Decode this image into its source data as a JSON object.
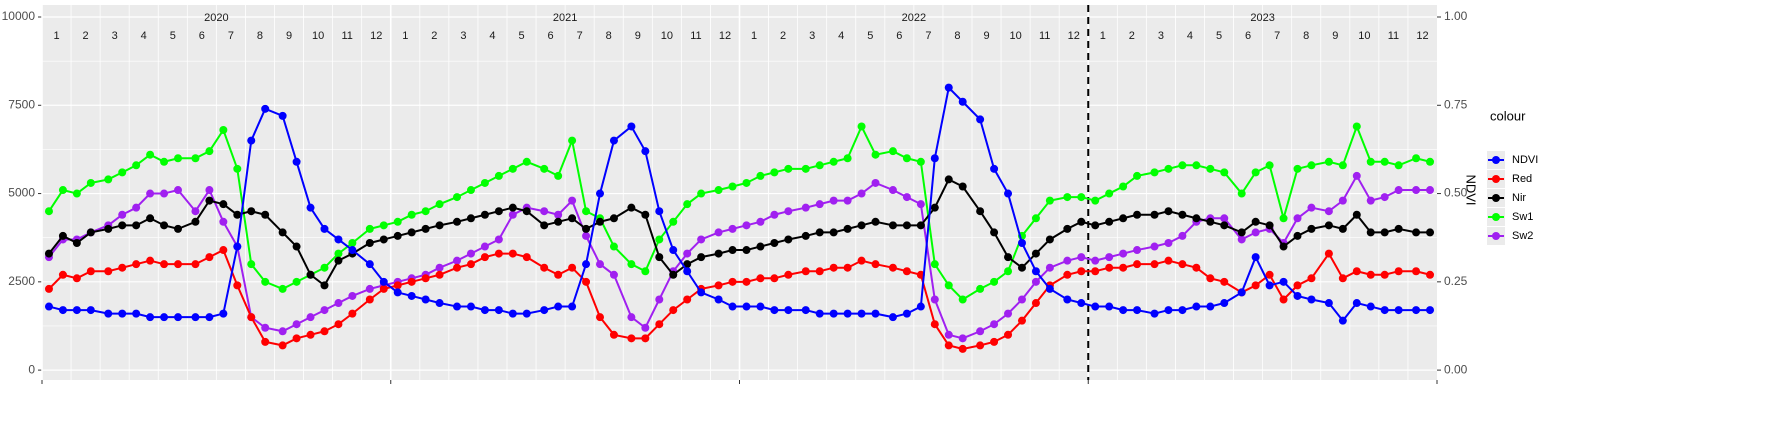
{
  "chart_data": {
    "type": "line",
    "x": [
      2020.02,
      2020.06,
      2020.1,
      2020.14,
      2020.19,
      2020.23,
      2020.27,
      2020.31,
      2020.35,
      2020.39,
      2020.44,
      2020.48,
      2020.52,
      2020.56,
      2020.6,
      2020.64,
      2020.69,
      2020.73,
      2020.77,
      2020.81,
      2020.85,
      2020.89,
      2020.94,
      2020.98,
      2021.02,
      2021.06,
      2021.1,
      2021.14,
      2021.19,
      2021.23,
      2021.27,
      2021.31,
      2021.35,
      2021.39,
      2021.44,
      2021.48,
      2021.52,
      2021.56,
      2021.6,
      2021.64,
      2021.69,
      2021.73,
      2021.77,
      2021.81,
      2021.85,
      2021.89,
      2021.94,
      2021.98,
      2022.02,
      2022.06,
      2022.1,
      2022.14,
      2022.19,
      2022.23,
      2022.27,
      2022.31,
      2022.35,
      2022.39,
      2022.44,
      2022.48,
      2022.52,
      2022.56,
      2022.6,
      2022.64,
      2022.69,
      2022.73,
      2022.77,
      2022.81,
      2022.85,
      2022.89,
      2022.94,
      2022.98,
      2023.02,
      2023.06,
      2023.1,
      2023.14,
      2023.19,
      2023.23,
      2023.27,
      2023.31,
      2023.35,
      2023.39,
      2023.44,
      2023.48,
      2023.52,
      2023.56,
      2023.6,
      2023.64,
      2023.69,
      2023.73,
      2023.77,
      2023.81,
      2023.85,
      2023.89,
      2023.94,
      2023.98
    ],
    "series": [
      {
        "name": "Sw1",
        "color": "#00ff00",
        "values": [
          4500,
          5100,
          5000,
          5300,
          5400,
          5600,
          5800,
          6100,
          5900,
          6000,
          6000,
          6200,
          6800,
          5700,
          3000,
          2500,
          2300,
          2500,
          2700,
          2900,
          3300,
          3600,
          4000,
          4100,
          4200,
          4400,
          4500,
          4700,
          4900,
          5100,
          5300,
          5500,
          5700,
          5900,
          5700,
          5500,
          6500,
          4500,
          4300,
          3500,
          3000,
          2800,
          3700,
          4200,
          4700,
          5000,
          5100,
          5200,
          5300,
          5500,
          5600,
          5700,
          5700,
          5800,
          5900,
          6000,
          6900,
          6100,
          6200,
          6000,
          5900,
          3000,
          2400,
          2000,
          2300,
          2500,
          2800,
          3800,
          4300,
          4800,
          4900,
          4900,
          4800,
          5000,
          5200,
          5500,
          5600,
          5700,
          5800,
          5800,
          5700,
          5600,
          5000,
          5600,
          5800,
          4300,
          5700,
          5800,
          5900,
          5800,
          6900,
          5900,
          5900,
          5800,
          6000,
          5900
        ]
      },
      {
        "name": "Sw2",
        "color": "#a020f0",
        "values": [
          3200,
          3700,
          3700,
          3900,
          4100,
          4400,
          4600,
          5000,
          5000,
          5100,
          4500,
          5100,
          4200,
          3500,
          1500,
          1200,
          1100,
          1300,
          1500,
          1700,
          1900,
          2100,
          2300,
          2400,
          2500,
          2600,
          2700,
          2900,
          3100,
          3300,
          3500,
          3700,
          4400,
          4600,
          4500,
          4400,
          4800,
          3800,
          3000,
          2700,
          1500,
          1200,
          2000,
          2800,
          3300,
          3700,
          3900,
          4000,
          4100,
          4200,
          4400,
          4500,
          4600,
          4700,
          4800,
          4800,
          5000,
          5300,
          5100,
          4900,
          4700,
          2000,
          1000,
          900,
          1100,
          1300,
          1600,
          2000,
          2500,
          2900,
          3100,
          3200,
          3100,
          3200,
          3300,
          3400,
          3500,
          3600,
          3800,
          4200,
          4300,
          4300,
          3700,
          3900,
          4000,
          3600,
          4300,
          4600,
          4500,
          4800,
          5500,
          4800,
          4900,
          5100,
          5100,
          5100
        ]
      },
      {
        "name": "Nir",
        "color": "#000000",
        "values": [
          3300,
          3800,
          3600,
          3900,
          4000,
          4100,
          4100,
          4300,
          4100,
          4000,
          4200,
          4800,
          4700,
          4400,
          4500,
          4400,
          3900,
          3500,
          2700,
          2400,
          3100,
          3300,
          3600,
          3700,
          3800,
          3900,
          4000,
          4100,
          4200,
          4300,
          4400,
          4500,
          4600,
          4500,
          4100,
          4200,
          4300,
          4000,
          4200,
          4300,
          4600,
          4400,
          3200,
          2700,
          3000,
          3200,
          3300,
          3400,
          3400,
          3500,
          3600,
          3700,
          3800,
          3900,
          3900,
          4000,
          4100,
          4200,
          4100,
          4100,
          4100,
          4600,
          5400,
          5200,
          4500,
          3900,
          3200,
          2900,
          3300,
          3700,
          4000,
          4200,
          4100,
          4200,
          4300,
          4400,
          4400,
          4500,
          4400,
          4300,
          4200,
          4100,
          3900,
          4200,
          4100,
          3500,
          3800,
          4000,
          4100,
          4000,
          4400,
          3900,
          3900,
          4000,
          3900,
          3900
        ]
      },
      {
        "name": "Red",
        "color": "#ff0000",
        "values": [
          2300,
          2700,
          2600,
          2800,
          2800,
          2900,
          3000,
          3100,
          3000,
          3000,
          3000,
          3200,
          3400,
          2400,
          1500,
          800,
          700,
          900,
          1000,
          1100,
          1300,
          1600,
          2000,
          2300,
          2400,
          2500,
          2600,
          2700,
          2900,
          3000,
          3200,
          3300,
          3300,
          3200,
          2900,
          2700,
          2900,
          2500,
          1500,
          1000,
          900,
          900,
          1300,
          1700,
          2000,
          2300,
          2400,
          2500,
          2500,
          2600,
          2600,
          2700,
          2800,
          2800,
          2900,
          2900,
          3100,
          3000,
          2900,
          2800,
          2700,
          1300,
          700,
          600,
          700,
          800,
          1000,
          1400,
          1900,
          2400,
          2700,
          2800,
          2800,
          2900,
          2900,
          3000,
          3000,
          3100,
          3000,
          2900,
          2600,
          2500,
          2200,
          2400,
          2700,
          2000,
          2400,
          2600,
          3300,
          2600,
          2800,
          2700,
          2700,
          2800,
          2800,
          2700
        ]
      },
      {
        "name": "NDVI",
        "color": "#0000ff",
        "axis": "y2",
        "values": [
          0.18,
          0.17,
          0.17,
          0.17,
          0.16,
          0.16,
          0.16,
          0.15,
          0.15,
          0.15,
          0.15,
          0.15,
          0.16,
          0.35,
          0.65,
          0.74,
          0.72,
          0.59,
          0.46,
          0.4,
          0.37,
          0.34,
          0.3,
          0.25,
          0.22,
          0.21,
          0.2,
          0.19,
          0.18,
          0.18,
          0.17,
          0.17,
          0.16,
          0.16,
          0.17,
          0.18,
          0.18,
          0.3,
          0.5,
          0.65,
          0.69,
          0.62,
          0.45,
          0.34,
          0.28,
          0.22,
          0.2,
          0.18,
          0.18,
          0.18,
          0.17,
          0.17,
          0.17,
          0.16,
          0.16,
          0.16,
          0.16,
          0.16,
          0.15,
          0.16,
          0.18,
          0.6,
          0.8,
          0.76,
          0.71,
          0.57,
          0.5,
          0.36,
          0.28,
          0.23,
          0.2,
          0.19,
          0.18,
          0.18,
          0.17,
          0.17,
          0.16,
          0.17,
          0.17,
          0.18,
          0.18,
          0.19,
          0.22,
          0.32,
          0.24,
          0.25,
          0.21,
          0.2,
          0.19,
          0.14,
          0.19,
          0.18,
          0.17,
          0.17,
          0.17,
          0.17
        ]
      }
    ],
    "legend_order": [
      "NDVI",
      "Red",
      "Nir",
      "Sw1",
      "Sw2"
    ],
    "legend_title": "colour",
    "y2label": "NDVI",
    "years": [
      2020,
      2021,
      2022,
      2023
    ],
    "months": [
      1,
      2,
      3,
      4,
      5,
      6,
      7,
      8,
      9,
      10,
      11,
      12
    ],
    "vline": 2023,
    "xlim": [
      2020,
      2024
    ],
    "ylim": [
      -280,
      10340
    ],
    "yticks": [
      0,
      2500,
      5000,
      7500,
      10000
    ],
    "y2lim": [
      -0.028,
      1.034
    ],
    "y2ticks": [
      {
        "value": 0,
        "label": "0.00"
      },
      {
        "value": 0.25,
        "label": "0.25"
      },
      {
        "value": 0.5,
        "label": "0.50"
      },
      {
        "value": 0.75,
        "label": "0.75"
      },
      {
        "value": 1,
        "label": "1.00"
      }
    ],
    "grid": true
  }
}
